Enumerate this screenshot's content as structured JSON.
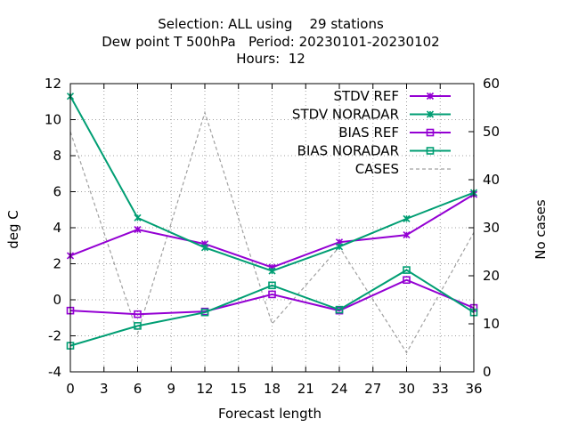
{
  "chart_data": {
    "type": "line",
    "title_lines": [
      "Selection: ALL using    29 stations",
      "Dew point T 500hPa   Period: 20230101-20230102",
      "Hours:  12"
    ],
    "xlabel": "Forecast length",
    "ylabel": "deg C",
    "y2label": "No cases",
    "xlim": [
      0,
      36
    ],
    "ylim": [
      -4,
      12
    ],
    "y2lim": [
      0,
      60
    ],
    "xticks": [
      0,
      3,
      6,
      9,
      12,
      15,
      18,
      21,
      24,
      27,
      30,
      33,
      36
    ],
    "yticks": [
      -4,
      -2,
      0,
      2,
      4,
      6,
      8,
      10,
      12
    ],
    "y2ticks": [
      0,
      10,
      20,
      30,
      40,
      50,
      60
    ],
    "grid": true,
    "legend_position": "top-right",
    "series": [
      {
        "name": "STDV REF",
        "axis": "y",
        "color": "#9400d3",
        "marker": "x",
        "dash": false,
        "x": [
          0,
          6,
          12,
          18,
          24,
          30,
          36
        ],
        "values": [
          2.45,
          3.9,
          3.1,
          1.8,
          3.2,
          3.6,
          5.85
        ]
      },
      {
        "name": "STDV NORADAR",
        "axis": "y",
        "color": "#009e73",
        "marker": "x",
        "dash": false,
        "x": [
          0,
          6,
          12,
          18,
          24,
          30,
          36
        ],
        "values": [
          11.3,
          4.55,
          2.9,
          1.6,
          2.95,
          4.5,
          5.95
        ]
      },
      {
        "name": "BIAS REF",
        "axis": "y",
        "color": "#9400d3",
        "marker": "square",
        "dash": false,
        "x": [
          0,
          6,
          12,
          18,
          24,
          30,
          36
        ],
        "values": [
          -0.6,
          -0.8,
          -0.65,
          0.3,
          -0.6,
          1.1,
          -0.45
        ]
      },
      {
        "name": "BIAS NORADAR",
        "axis": "y",
        "color": "#009e73",
        "marker": "square",
        "dash": false,
        "x": [
          0,
          6,
          12,
          18,
          24,
          30,
          36
        ],
        "values": [
          -2.55,
          -1.45,
          -0.7,
          0.8,
          -0.55,
          1.65,
          -0.7
        ]
      },
      {
        "name": "CASES",
        "axis": "y2",
        "color": "#a0a0a0",
        "marker": "none",
        "dash": true,
        "x": [
          0,
          6,
          12,
          18,
          24,
          30,
          36
        ],
        "values": [
          50,
          8,
          54,
          10,
          26,
          4,
          29
        ]
      }
    ]
  }
}
